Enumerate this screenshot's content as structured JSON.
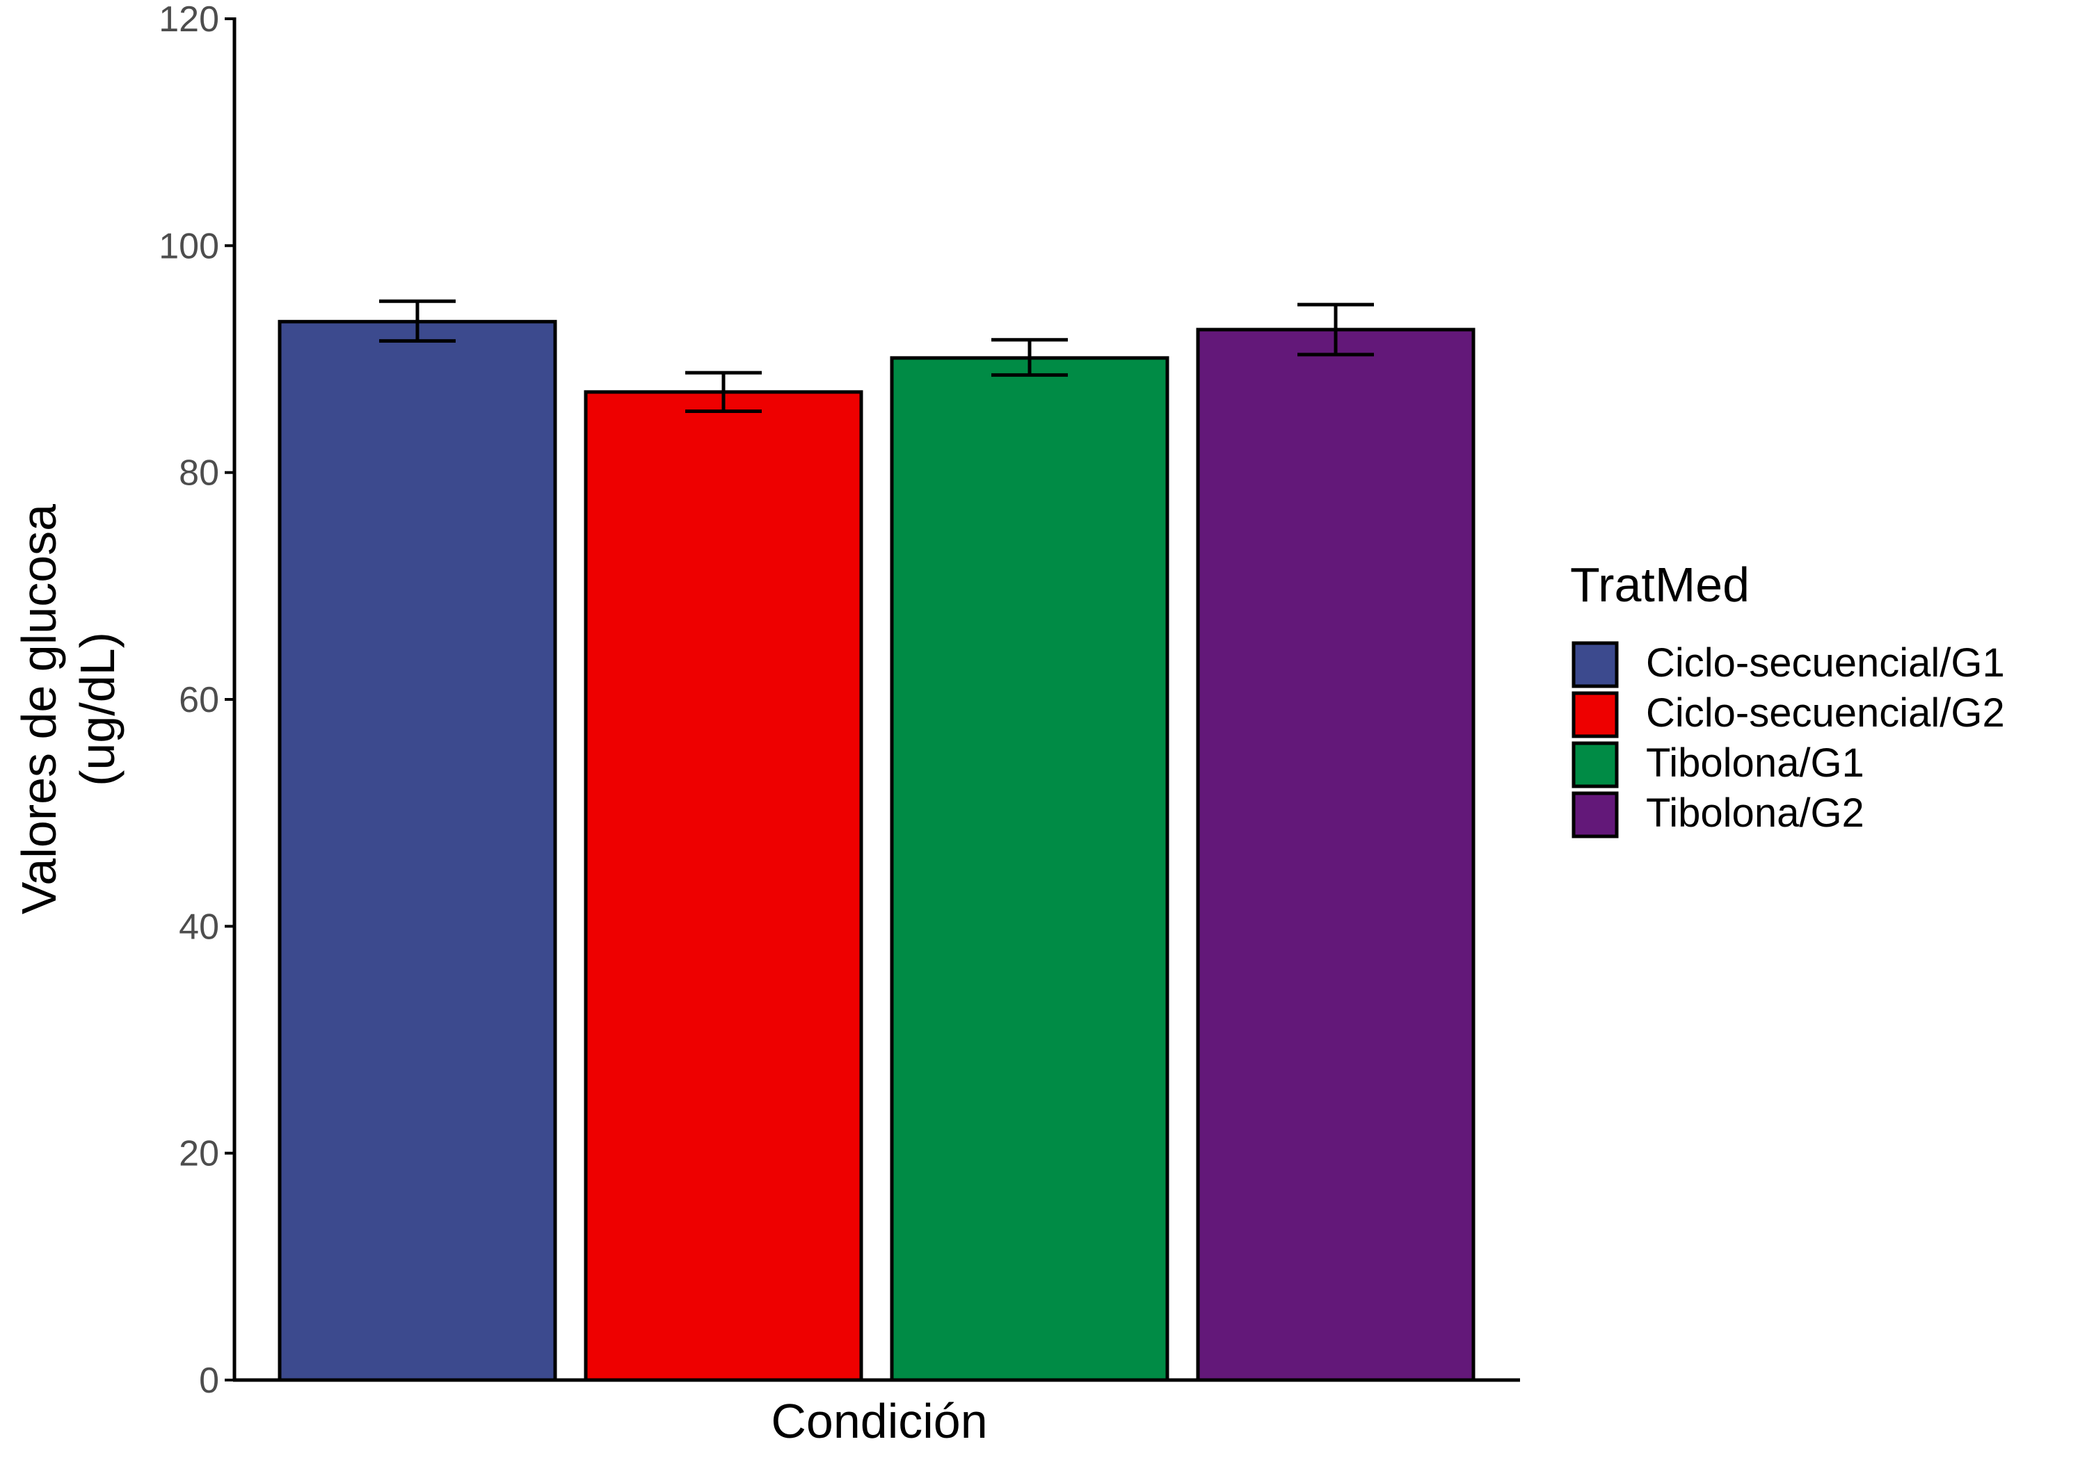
{
  "chart_data": {
    "type": "bar",
    "title": "",
    "xlabel": "Condición",
    "ylabel": [
      "Valores de glucosa",
      "(ug/dL)"
    ],
    "ylim": [
      0,
      120
    ],
    "yticks": [
      0,
      20,
      40,
      60,
      80,
      100,
      120
    ],
    "grid": false,
    "legend": {
      "title": "TratMed",
      "placement": "right"
    },
    "series": [
      {
        "name": "Ciclo-secuencial/G1",
        "value": 93.3,
        "error_low": 91.6,
        "error_high": 95.1,
        "color": "#3C4A8E"
      },
      {
        "name": "Ciclo-secuencial/G2",
        "value": 87.1,
        "error_low": 85.4,
        "error_high": 88.8,
        "color": "#EE0000"
      },
      {
        "name": "Tibolona/G1",
        "value": 90.1,
        "error_low": 88.6,
        "error_high": 91.7,
        "color": "#008B45"
      },
      {
        "name": "Tibolona/G2",
        "value": 92.6,
        "error_low": 90.4,
        "error_high": 94.8,
        "color": "#631879"
      }
    ]
  }
}
